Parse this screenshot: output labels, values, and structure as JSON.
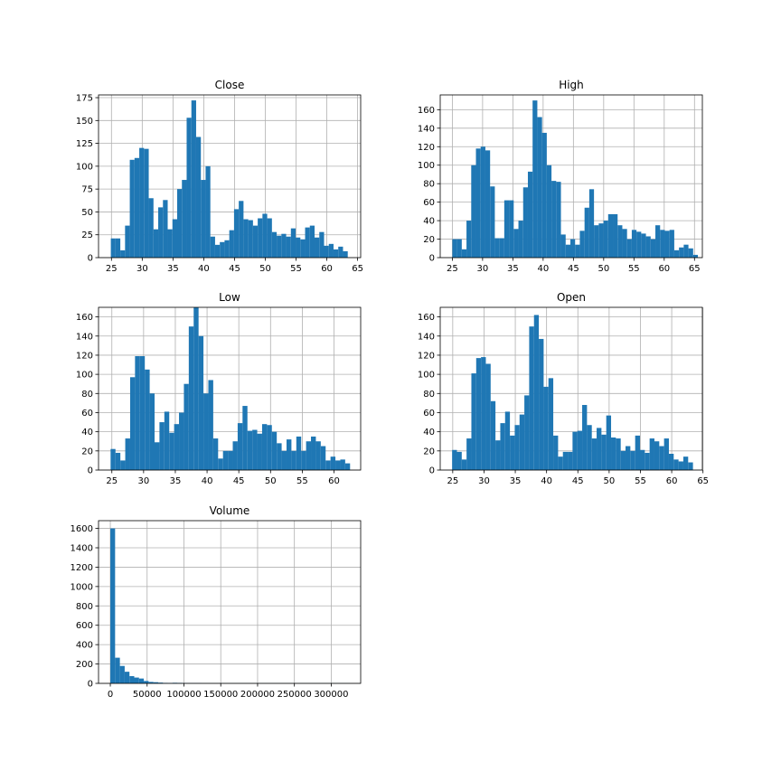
{
  "chart_data": [
    {
      "type": "bar",
      "histogram": true,
      "title": "Close",
      "grid": true,
      "bar_color": "#1f77b4",
      "xlim": [
        22.9,
        65.5
      ],
      "ylim": [
        0,
        178
      ],
      "xticks": [
        25,
        30,
        35,
        40,
        45,
        50,
        55,
        60,
        65
      ],
      "yticks": [
        0,
        25,
        50,
        75,
        100,
        125,
        150,
        175
      ],
      "bins": {
        "start": 24.9,
        "width": 0.77
      },
      "values": [
        21,
        21,
        8,
        35,
        107,
        109,
        120,
        119,
        65,
        31,
        55,
        63,
        31,
        42,
        75,
        85,
        153,
        172,
        132,
        85,
        100,
        23,
        14,
        17,
        19,
        30,
        53,
        62,
        42,
        41,
        35,
        43,
        48,
        43,
        28,
        24,
        26,
        23,
        32,
        22,
        20,
        33,
        35,
        22,
        28,
        13,
        15,
        9,
        12,
        7
      ]
    },
    {
      "type": "bar",
      "histogram": true,
      "title": "High",
      "grid": true,
      "bar_color": "#1f77b4",
      "xlim": [
        23.0,
        66.3
      ],
      "ylim": [
        0,
        176
      ],
      "xticks": [
        25,
        30,
        35,
        40,
        45,
        50,
        55,
        60,
        65
      ],
      "yticks": [
        0,
        20,
        40,
        60,
        80,
        100,
        120,
        140,
        160
      ],
      "bins": {
        "start": 25.0,
        "width": 0.78
      },
      "values": [
        20,
        20,
        9,
        40,
        100,
        118,
        120,
        116,
        77,
        21,
        21,
        62,
        62,
        31,
        40,
        76,
        93,
        170,
        152,
        135,
        100,
        83,
        82,
        25,
        14,
        20,
        14,
        29,
        54,
        74,
        35,
        37,
        40,
        47,
        47,
        35,
        31,
        20,
        30,
        28,
        26,
        23,
        20,
        35,
        30,
        29,
        30,
        8,
        11,
        14,
        10,
        3
      ]
    },
    {
      "type": "bar",
      "histogram": true,
      "title": "Low",
      "grid": true,
      "bar_color": "#1f77b4",
      "xlim": [
        22.9,
        64.2
      ],
      "ylim": [
        0,
        170
      ],
      "xticks": [
        25,
        30,
        35,
        40,
        45,
        50,
        55,
        60
      ],
      "yticks": [
        0,
        20,
        40,
        60,
        80,
        100,
        120,
        140,
        160
      ],
      "bins": {
        "start": 24.8,
        "width": 0.77
      },
      "values": [
        22,
        18,
        10,
        33,
        97,
        119,
        119,
        105,
        80,
        29,
        50,
        61,
        39,
        48,
        60,
        90,
        150,
        170,
        140,
        80,
        94,
        33,
        12,
        20,
        20,
        30,
        49,
        67,
        41,
        42,
        38,
        48,
        47,
        40,
        28,
        20,
        32,
        20,
        35,
        20,
        30,
        35,
        30,
        25,
        10,
        14,
        10,
        11,
        7
      ]
    },
    {
      "type": "bar",
      "histogram": true,
      "title": "Open",
      "grid": true,
      "bar_color": "#1f77b4",
      "xlim": [
        23.0,
        64.9
      ],
      "ylim": [
        0,
        170
      ],
      "xticks": [
        25,
        30,
        35,
        40,
        45,
        50,
        55,
        60,
        65
      ],
      "yticks": [
        0,
        20,
        40,
        60,
        80,
        100,
        120,
        140,
        160
      ],
      "bins": {
        "start": 24.9,
        "width": 0.77
      },
      "values": [
        21,
        19,
        11,
        33,
        101,
        117,
        118,
        111,
        72,
        31,
        49,
        61,
        36,
        47,
        58,
        78,
        150,
        162,
        137,
        87,
        96,
        36,
        14,
        19,
        19,
        40,
        41,
        68,
        47,
        33,
        44,
        37,
        57,
        34,
        33,
        20,
        25,
        20,
        36,
        21,
        18,
        33,
        30,
        25,
        33,
        17,
        11,
        9,
        14,
        8
      ]
    },
    {
      "type": "bar",
      "histogram": true,
      "title": "Volume",
      "grid": true,
      "bar_color": "#1f77b4",
      "xlim": [
        -16000,
        340000
      ],
      "ylim": [
        0,
        1680
      ],
      "xticks": [
        0,
        50000,
        100000,
        150000,
        200000,
        250000,
        300000
      ],
      "yticks": [
        0,
        200,
        400,
        600,
        800,
        1000,
        1200,
        1400,
        1600
      ],
      "bins": {
        "start": 0,
        "width": 6500
      },
      "values": [
        1600,
        265,
        180,
        120,
        75,
        60,
        50,
        25,
        15,
        12,
        8,
        5,
        4,
        6,
        5,
        3,
        2,
        2,
        2,
        1,
        1,
        1,
        1,
        1,
        1,
        1,
        1,
        1,
        1,
        1,
        1,
        1,
        1,
        1,
        1,
        1,
        1,
        1,
        1,
        1,
        1,
        1,
        1,
        1,
        1,
        1,
        1,
        1,
        1,
        1
      ]
    }
  ]
}
